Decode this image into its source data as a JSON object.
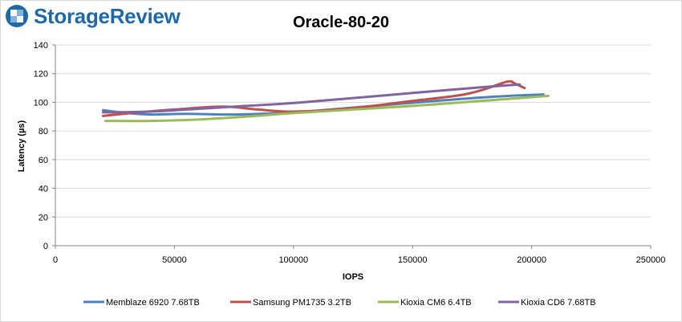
{
  "logo": {
    "text": "StorageReview",
    "icon": "storagereview-logo-icon",
    "color": "#1f6aa6"
  },
  "chart_data": {
    "type": "line",
    "title": "Oracle-80-20",
    "xlabel": "IOPS",
    "ylabel": "Latency (µs)",
    "xlim": [
      0,
      250000
    ],
    "ylim": [
      0,
      140
    ],
    "xticks": [
      0,
      50000,
      100000,
      150000,
      200000,
      250000
    ],
    "yticks": [
      0,
      20,
      40,
      60,
      80,
      100,
      120,
      140
    ],
    "grid": "horizontal",
    "legend": "bottom",
    "series": [
      {
        "name": "Memblaze 6920 7.68TB",
        "color": "#4f81bd",
        "x": [
          20000,
          30000,
          40000,
          55000,
          75000,
          100000,
          130000,
          160000,
          185000,
          205000
        ],
        "y": [
          94.5,
          92.5,
          91.5,
          92,
          91.5,
          93,
          97,
          101,
          104,
          105.5
        ]
      },
      {
        "name": "Samsung PM1735 3.2TB",
        "color": "#c0504d",
        "x": [
          20000,
          35000,
          50000,
          70000,
          85000,
          100000,
          125000,
          150000,
          170000,
          180000,
          190000,
          193000,
          197000
        ],
        "y": [
          90.5,
          93,
          95,
          97,
          95,
          93.5,
          96,
          101,
          105,
          109,
          114.5,
          113,
          110
        ]
      },
      {
        "name": "Kioxia CM6 6.4TB",
        "color": "#9bbb59",
        "x": [
          21000,
          40000,
          60000,
          80000,
          100000,
          125000,
          150000,
          175000,
          195000,
          207000
        ],
        "y": [
          87,
          87,
          88,
          90,
          92.5,
          95,
          97.5,
          100.5,
          103,
          104.5
        ]
      },
      {
        "name": "Kioxia CD6 7.68TB",
        "color": "#8064a2",
        "x": [
          20000,
          40000,
          60000,
          80000,
          100000,
          125000,
          150000,
          175000,
          195000
        ],
        "y": [
          93,
          93.5,
          95.5,
          97.5,
          99.5,
          103,
          106.5,
          110,
          112.5
        ]
      }
    ]
  }
}
